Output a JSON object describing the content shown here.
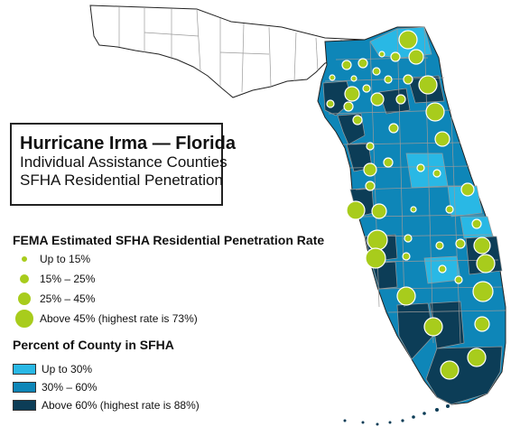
{
  "title": {
    "line1": "Hurricane Irma — Florida",
    "line2": "Individual Assistance Counties",
    "line3": "SFHA Residential Penetration"
  },
  "penetration_legend": {
    "heading": "FEMA Estimated SFHA Residential Penetration Rate",
    "items": [
      {
        "label": "Up to 15%",
        "size_class": "small"
      },
      {
        "label": "15% – 25%",
        "size_class": "medium"
      },
      {
        "label": "25% – 45%",
        "size_class": "large"
      },
      {
        "label": "Above 45% (highest rate is 73%)",
        "size_class": "xlarge"
      }
    ],
    "dot_color": "#a8cc1c"
  },
  "sfha_legend": {
    "heading": "Percent of County in SFHA",
    "items": [
      {
        "label": "Up to 30%",
        "color": "#29b8e5"
      },
      {
        "label": "30% – 60%",
        "color": "#0e86b8"
      },
      {
        "label": "Above 60% (highest rate is 88%)",
        "color": "#0c3d57"
      }
    ]
  },
  "colors": {
    "non_ia_county": "#ffffff",
    "county_border": "#9a9a9a",
    "coast_outline": "#222222"
  }
}
